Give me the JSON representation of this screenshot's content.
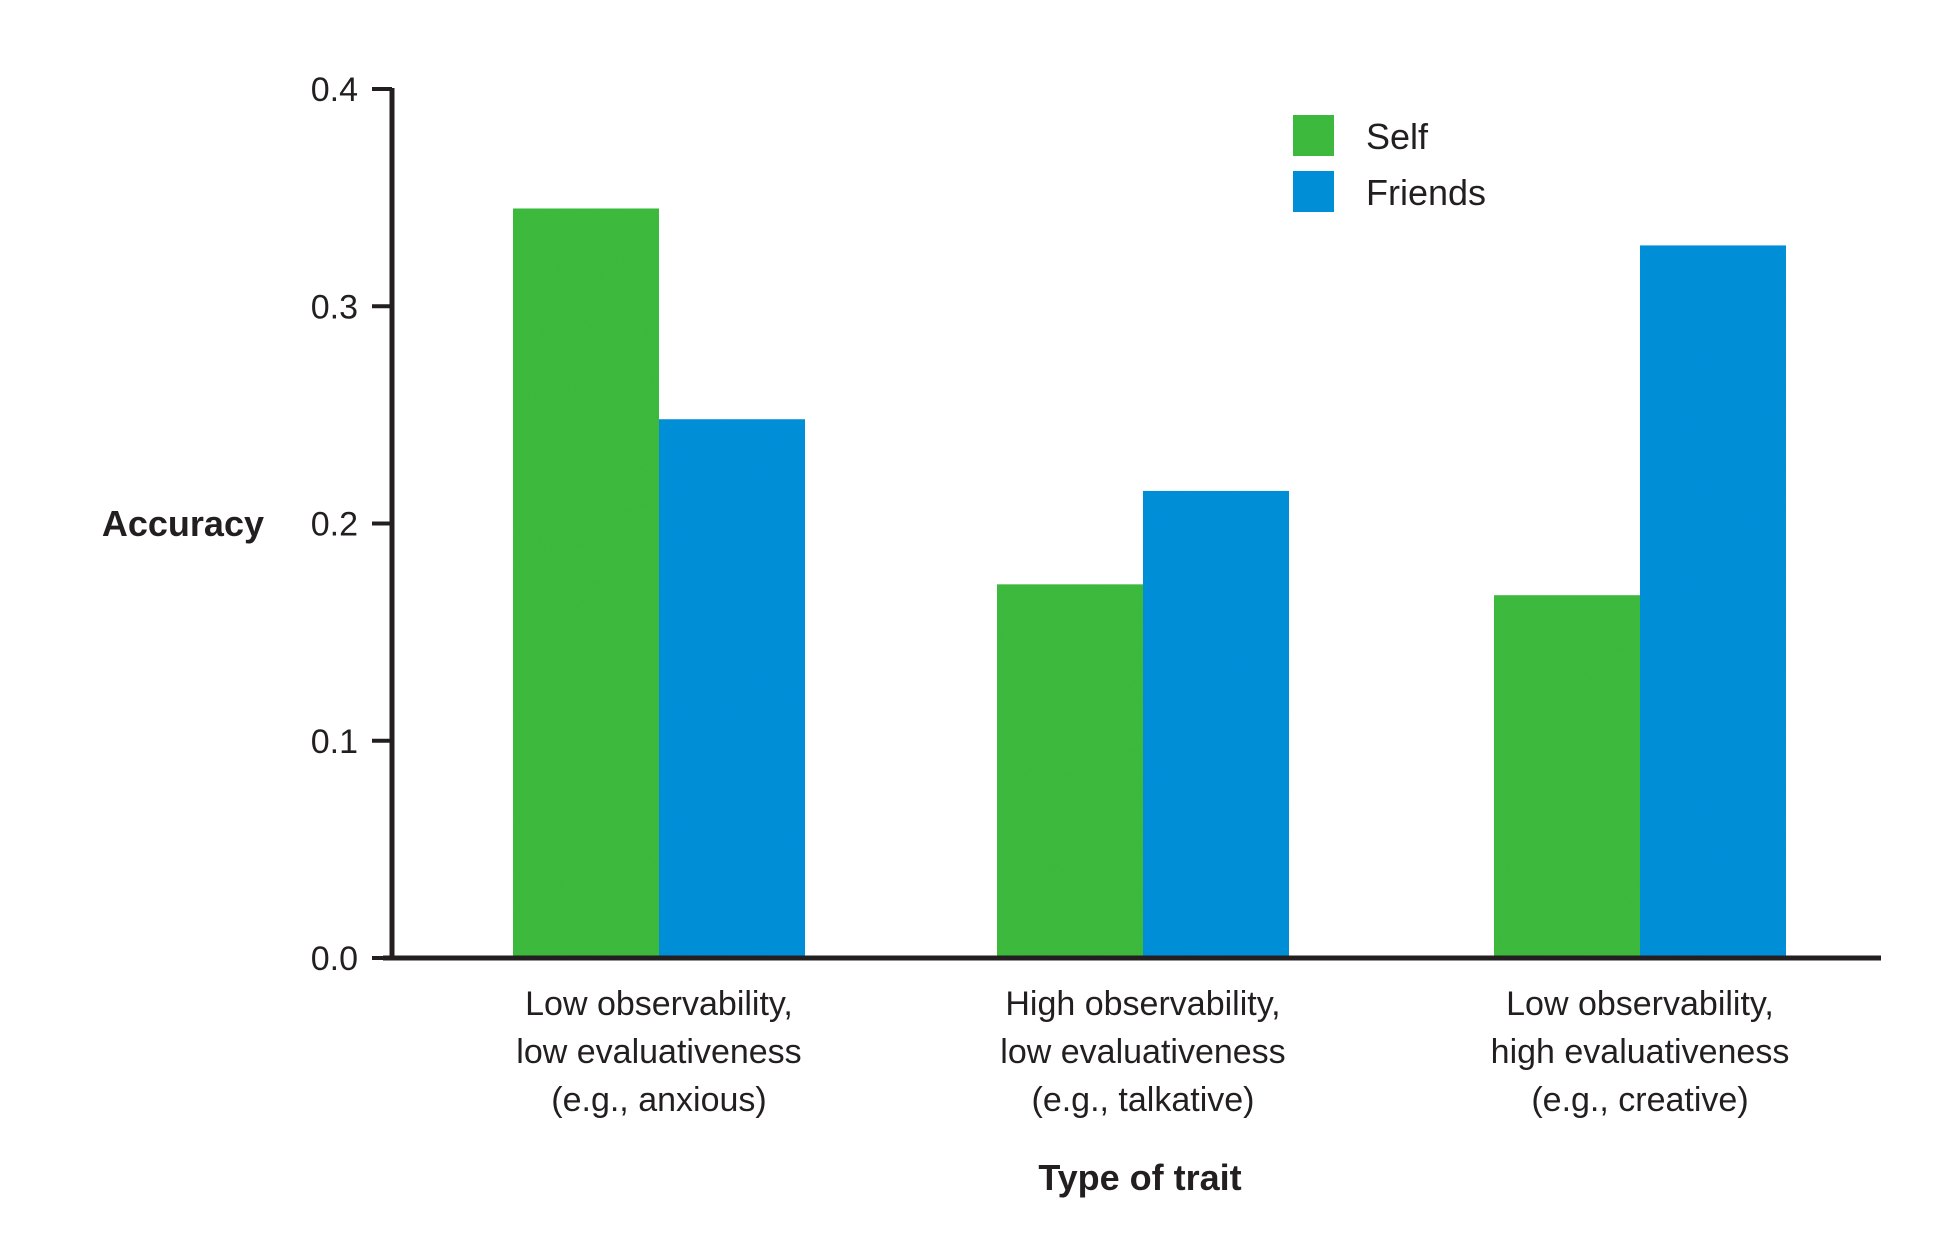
{
  "chart_data": {
    "type": "bar",
    "title": "",
    "xlabel": "Type of trait",
    "ylabel": "Accuracy",
    "ylim": [
      0.0,
      0.4
    ],
    "yticks": [
      "0.0",
      "0.1",
      "0.2",
      "0.3",
      "0.4"
    ],
    "grid": false,
    "legend_position": "top-right",
    "categories": [
      [
        "Low observability,",
        "low evaluativeness",
        "(e.g., anxious)"
      ],
      [
        "High observability,",
        "low evaluativeness",
        "(e.g., talkative)"
      ],
      [
        "Low observability,",
        "high evaluativeness",
        "(e.g., creative)"
      ]
    ],
    "series": [
      {
        "name": "Self",
        "color": "#3dbb3f",
        "values": [
          0.345,
          0.172,
          0.167
        ]
      },
      {
        "name": "Friends",
        "color": "#0090da",
        "values": [
          0.248,
          0.215,
          0.328
        ]
      }
    ]
  }
}
